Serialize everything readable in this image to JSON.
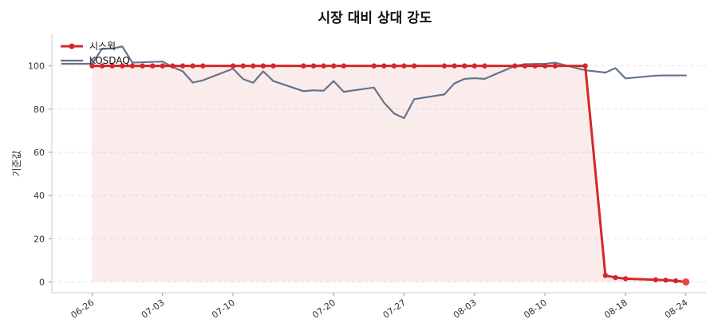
{
  "chart_data": {
    "type": "line",
    "title": "시장 대비 상대 강도",
    "xlabel": "",
    "ylabel": "기준값",
    "xticks": [
      "06-26",
      "07-03",
      "07-10",
      "07-20",
      "07-27",
      "08-03",
      "08-10",
      "08-18",
      "08-24"
    ],
    "yticks": [
      0,
      20,
      40,
      60,
      80,
      100
    ],
    "ylim": [
      -5,
      115
    ],
    "grid": true,
    "legend_position": "top-left",
    "series": [
      {
        "name": "시스윅",
        "color": "#d62728",
        "style": "line-with-markers-and-fill",
        "x": [
          "06-26",
          "06-27",
          "06-28",
          "06-29",
          "06-30",
          "07-01",
          "07-02",
          "07-03",
          "07-04",
          "07-05",
          "07-06",
          "07-07",
          "07-10",
          "07-11",
          "07-12",
          "07-13",
          "07-14",
          "07-17",
          "07-18",
          "07-19",
          "07-20",
          "07-21",
          "07-24",
          "07-25",
          "07-26",
          "07-27",
          "07-28",
          "07-31",
          "08-01",
          "08-02",
          "08-03",
          "08-04",
          "08-07",
          "08-08",
          "08-09",
          "08-10",
          "08-11",
          "08-14",
          "08-16",
          "08-17",
          "08-18",
          "08-21",
          "08-22",
          "08-23",
          "08-24"
        ],
        "values": [
          100,
          100,
          100,
          100,
          100,
          100,
          100,
          100,
          100,
          100,
          100,
          100,
          100,
          100,
          100,
          100,
          100,
          100,
          100,
          100,
          100,
          100,
          100,
          100,
          100,
          100,
          100,
          100,
          100,
          100,
          100,
          100,
          100,
          100,
          100,
          100,
          100,
          100,
          3,
          2,
          1.5,
          1,
          0.8,
          0.5,
          0
        ]
      },
      {
        "name": "KOSDAQ",
        "color": "#64748b",
        "style": "line",
        "x": [
          "06-23",
          "06-26",
          "06-27",
          "06-28",
          "06-29",
          "06-30",
          "07-03",
          "07-04",
          "07-05",
          "07-06",
          "07-07",
          "07-10",
          "07-11",
          "07-12",
          "07-13",
          "07-14",
          "07-17",
          "07-18",
          "07-19",
          "07-20",
          "07-21",
          "07-24",
          "07-25",
          "07-26",
          "07-27",
          "07-28",
          "07-31",
          "08-01",
          "08-02",
          "08-03",
          "08-04",
          "08-07",
          "08-08",
          "08-09",
          "08-10",
          "08-11",
          "08-14",
          "08-16",
          "08-17",
          "08-18",
          "08-21",
          "08-22",
          "08-23",
          "08-24"
        ],
        "values": [
          101,
          101,
          108,
          108,
          109,
          101.5,
          102,
          99.5,
          97.5,
          92.3,
          93.3,
          98.7,
          93.9,
          92.2,
          97.5,
          93,
          88.3,
          88.7,
          88.5,
          93,
          88,
          90,
          83,
          78,
          75.8,
          84.6,
          86.8,
          91.9,
          94,
          94.3,
          94,
          100,
          100.8,
          100.9,
          101,
          101.5,
          98,
          96.9,
          99,
          94.2,
          95.5,
          95.6,
          95.6,
          95.6
        ]
      }
    ]
  }
}
